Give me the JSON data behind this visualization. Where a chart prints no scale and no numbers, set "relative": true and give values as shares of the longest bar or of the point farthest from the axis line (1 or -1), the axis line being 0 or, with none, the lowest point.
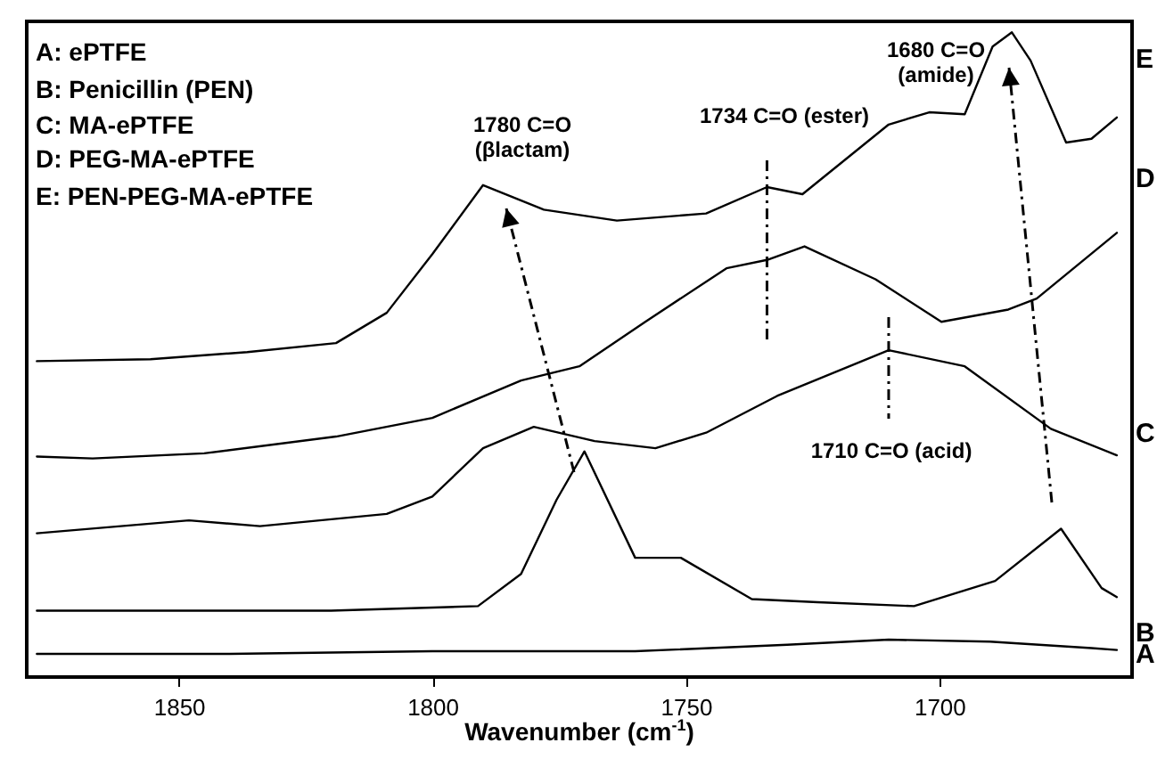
{
  "chart_data": {
    "type": "line",
    "relative": true,
    "xlabel": "Wavenumber (cm$^{-1}$)",
    "xlim": [
      1880,
      1662
    ],
    "xticks": [
      1850,
      1800,
      1750,
      1700
    ],
    "grid": false,
    "marker": "none",
    "ref_lines": [
      {
        "axis": "x",
        "value": 1734,
        "label": null,
        "color": "#000000",
        "line_style": "dashed"
      },
      {
        "axis": "x",
        "value": 1710,
        "label": null,
        "color": "#000000",
        "line_style": "dashed"
      }
    ],
    "line_style": "solid",
    "annotations": [
      "A: ePTFE",
      "B: Penicillin (PEN)",
      "C: MA-ePTFE",
      "D: PEG-MA-ePTFE",
      "E: PEN-PEG-MA-ePTFE",
      "1780 C=O\n(βlactam)",
      "1734 C=O (ester)",
      "1680 C=O\n(amide)",
      "1710 C=O (acid)"
    ],
    "series": [
      {
        "name": "A",
        "color": "#000000",
        "x": [
          1878,
          1840,
          1800,
          1760,
          1730,
          1710,
          1690,
          1670,
          1665
        ],
        "values": [
          0.036,
          0.036,
          0.04,
          0.04,
          0.05,
          0.058,
          0.055,
          0.045,
          0.042
        ]
      },
      {
        "name": "B",
        "color": "#000000",
        "x": [
          1878,
          1820,
          1791,
          1782.5,
          1775.5,
          1770,
          1760,
          1751,
          1737,
          1724,
          1705,
          1689,
          1676,
          1668,
          1665
        ],
        "values": [
          0.103,
          0.103,
          0.11,
          0.16,
          0.275,
          0.35,
          0.185,
          0.185,
          0.121,
          0.116,
          0.11,
          0.149,
          0.23,
          0.138,
          0.124
        ]
      },
      {
        "name": "C",
        "color": "#000000",
        "x": [
          1878,
          1848,
          1834,
          1809,
          1800,
          1790,
          1780,
          1768,
          1756,
          1746,
          1732,
          1710,
          1695,
          1678,
          1665
        ],
        "values": [
          0.223,
          0.243,
          0.234,
          0.253,
          0.28,
          0.355,
          0.388,
          0.366,
          0.355,
          0.379,
          0.436,
          0.507,
          0.482,
          0.385,
          0.344
        ]
      },
      {
        "name": "D",
        "color": "#000000",
        "x": [
          1878,
          1867,
          1845,
          1819,
          1800,
          1782.5,
          1771,
          1758,
          1742,
          1734,
          1726.6,
          1712.6,
          1699.6,
          1686.4,
          1680.8,
          1665
        ],
        "values": [
          0.342,
          0.339,
          0.347,
          0.373,
          0.402,
          0.46,
          0.482,
          0.551,
          0.634,
          0.647,
          0.668,
          0.617,
          0.551,
          0.57,
          0.587,
          0.689
        ]
      },
      {
        "name": "E",
        "color": "#000000",
        "x": [
          1878,
          1855.6,
          1836.5,
          1819,
          1809,
          1800,
          1790,
          1778,
          1763.6,
          1746,
          1734,
          1727,
          1710,
          1702,
          1695,
          1689.5,
          1685.7,
          1682,
          1675,
          1670,
          1665
        ],
        "values": [
          0.49,
          0.493,
          0.504,
          0.518,
          0.565,
          0.656,
          0.763,
          0.725,
          0.708,
          0.719,
          0.76,
          0.749,
          0.857,
          0.876,
          0.873,
          0.978,
          1.0,
          0.956,
          0.829,
          0.835,
          0.868
        ]
      }
    ]
  }
}
